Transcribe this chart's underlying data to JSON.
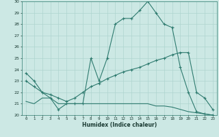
{
  "xlabel": "Humidex (Indice chaleur)",
  "x_labels": [
    "0",
    "1",
    "2",
    "3",
    "4",
    "5",
    "6",
    "7",
    "8",
    "9",
    "10",
    "11",
    "12",
    "13",
    "14",
    "15",
    "16",
    "17",
    "18",
    "19",
    "20",
    "21",
    "22",
    "23"
  ],
  "line1_x": [
    0,
    1,
    2,
    3,
    4,
    5,
    6,
    7,
    8,
    9,
    10,
    11,
    12,
    13,
    14,
    15,
    16,
    17,
    18,
    19,
    20,
    21,
    22,
    23
  ],
  "line1_y": [
    23.7,
    23.0,
    22.0,
    21.5,
    20.5,
    21.0,
    21.0,
    21.0,
    25.0,
    23.0,
    25.0,
    28.0,
    28.5,
    28.5,
    29.2,
    30.0,
    29.0,
    28.0,
    27.7,
    24.2,
    22.0,
    20.3,
    20.1,
    20.0
  ],
  "line2_x": [
    0,
    1,
    2,
    3,
    4,
    5,
    6,
    7,
    8,
    9,
    10,
    11,
    12,
    13,
    14,
    15,
    16,
    17,
    18,
    19,
    20,
    21,
    22,
    23
  ],
  "line2_y": [
    23.0,
    22.5,
    22.0,
    21.8,
    21.5,
    21.2,
    21.5,
    22.0,
    22.5,
    22.8,
    23.2,
    23.5,
    23.8,
    24.0,
    24.2,
    24.5,
    24.8,
    25.0,
    25.3,
    25.5,
    25.5,
    22.0,
    21.5,
    20.5
  ],
  "line3_x": [
    0,
    1,
    2,
    3,
    4,
    5,
    6,
    7,
    8,
    9,
    10,
    11,
    12,
    13,
    14,
    15,
    16,
    17,
    18,
    19,
    20,
    21,
    22,
    23
  ],
  "line3_y": [
    21.2,
    21.0,
    21.5,
    21.5,
    21.0,
    21.0,
    21.0,
    21.0,
    21.0,
    21.0,
    21.0,
    21.0,
    21.0,
    21.0,
    21.0,
    21.0,
    20.8,
    20.8,
    20.7,
    20.5,
    20.3,
    20.2,
    20.1,
    20.0
  ],
  "bg_color": "#cce8e4",
  "line_color": "#2d7a6e",
  "grid_color": "#aed4cf",
  "ylim": [
    20,
    30
  ],
  "yticks": [
    20,
    21,
    22,
    23,
    24,
    25,
    26,
    27,
    28,
    29,
    30
  ]
}
